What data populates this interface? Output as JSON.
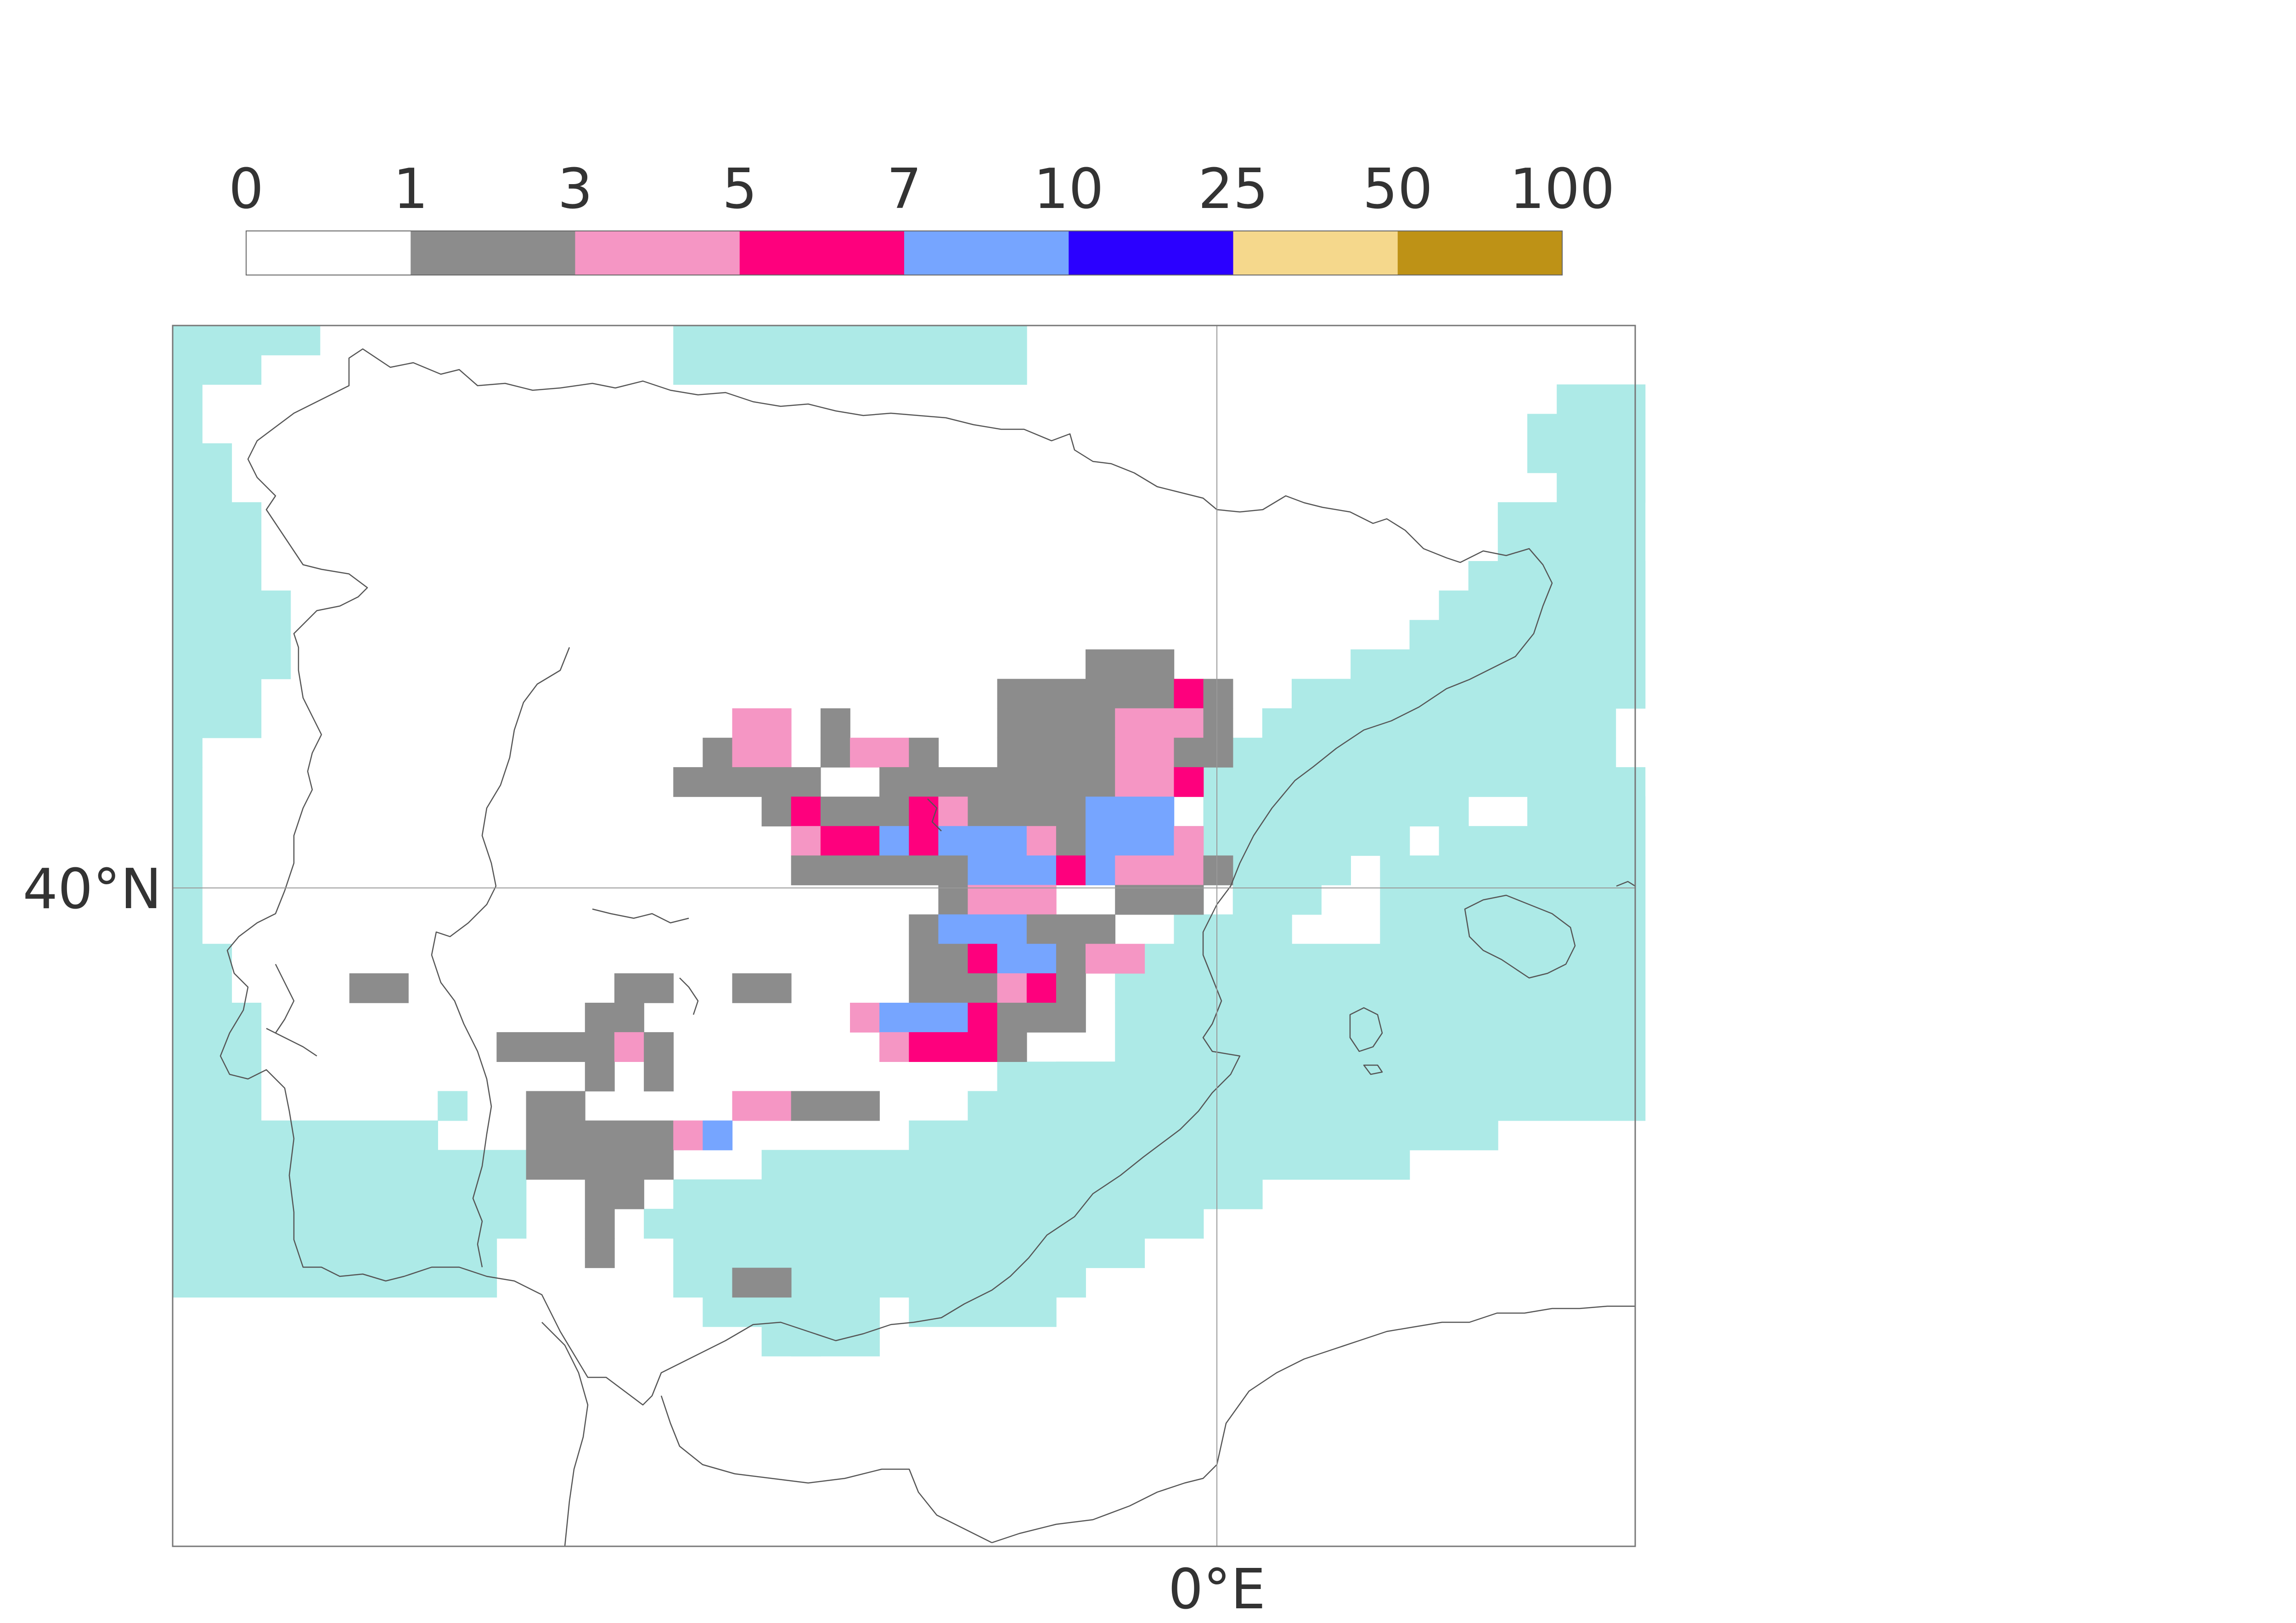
{
  "legend": {
    "ticks": [
      "0",
      "1",
      "3",
      "5",
      "7",
      "10",
      "25",
      "50",
      "100"
    ],
    "bins": [
      {
        "from": "0",
        "to": "1",
        "color": "#ffffff"
      },
      {
        "from": "1",
        "to": "3",
        "color": "#8c8c8c"
      },
      {
        "from": "3",
        "to": "5",
        "color": "#f596c4"
      },
      {
        "from": "5",
        "to": "7",
        "color": "#fe007d"
      },
      {
        "from": "7",
        "to": "10",
        "color": "#76a5ff"
      },
      {
        "from": "10",
        "to": "25",
        "color": "#2b00ff"
      },
      {
        "from": "25",
        "to": "50",
        "color": "#f5d88c"
      },
      {
        "from": "50",
        "to": "100",
        "color": "#be9216"
      }
    ]
  },
  "map": {
    "region": "Iberian Peninsula",
    "ocean_mask_color": "#adeae7",
    "coastline_color": "#555555",
    "gridline_color": "#999999",
    "lat_labels": [
      "40°N"
    ],
    "lon_labels": [
      "0°E"
    ]
  }
}
